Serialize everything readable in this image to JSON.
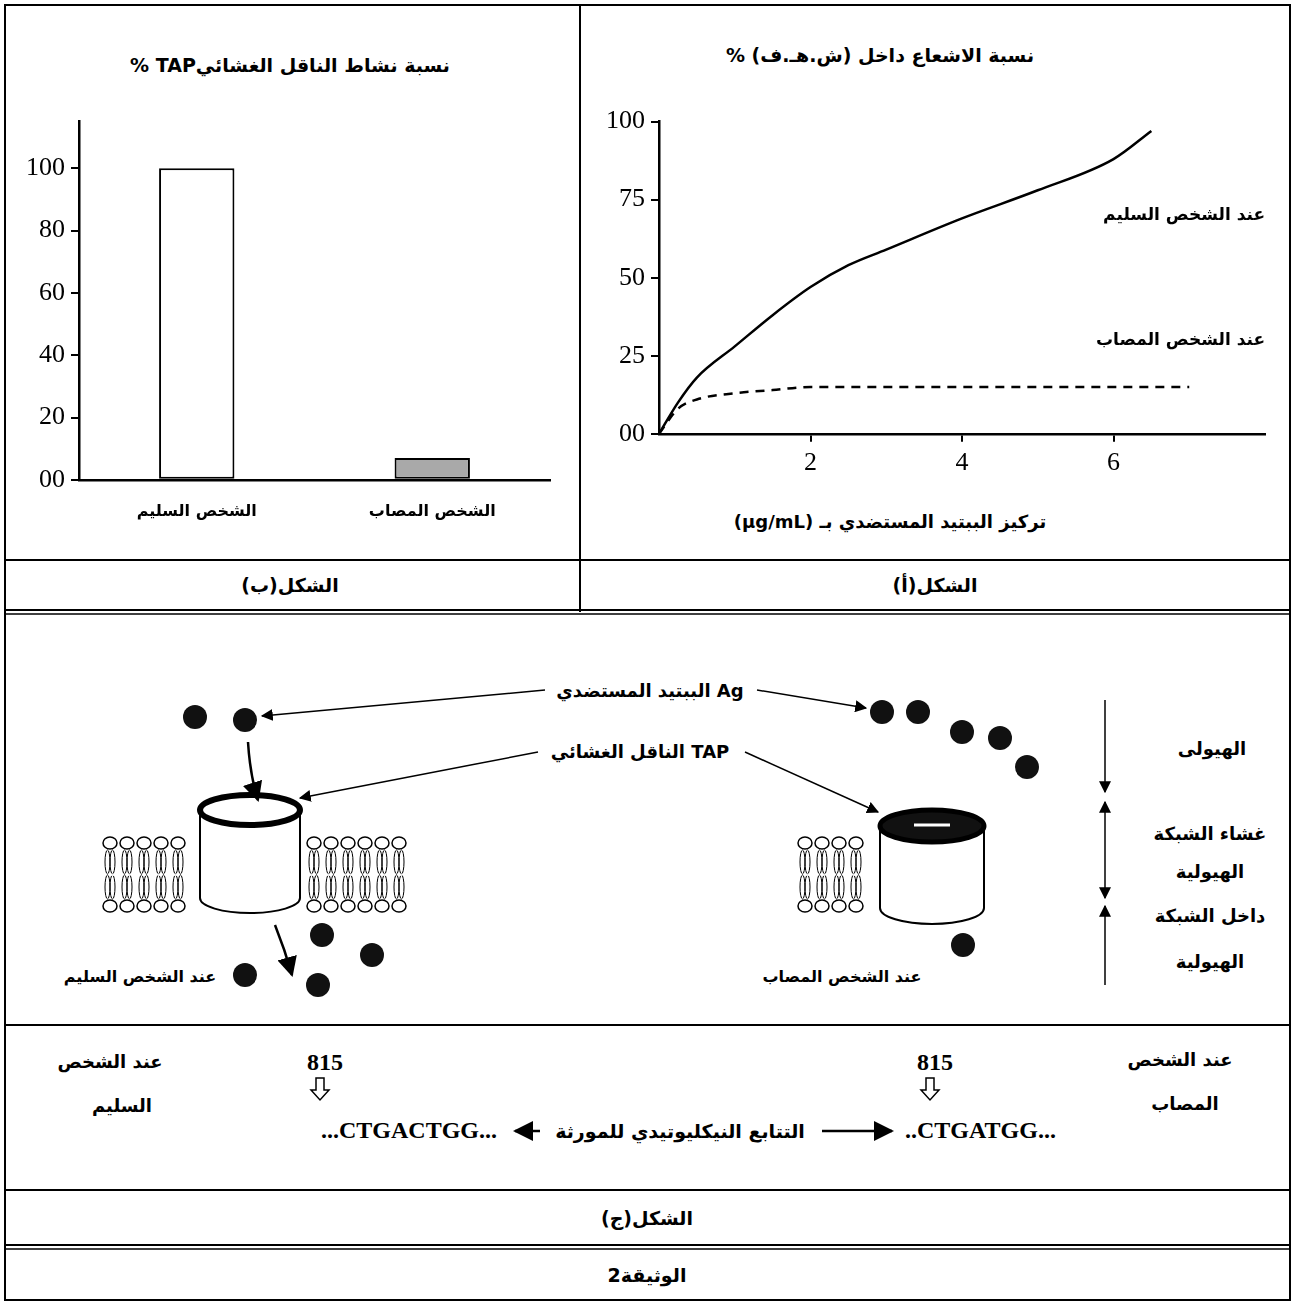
{
  "chart_data": [
    {
      "type": "bar",
      "caption": "الشكل(ب)",
      "title": "نسبة نشاط الناقل الغشائيTAP %",
      "categories": [
        "الشخص السليم",
        "الشخص المصاب"
      ],
      "values": [
        100,
        7
      ],
      "colors": [
        "#ffffff",
        "#a9a9a9"
      ],
      "ylim": [
        0,
        115
      ],
      "yticks": [
        {
          "value": 0,
          "label": "00"
        },
        20,
        40,
        60,
        80,
        100
      ],
      "grid": false
    },
    {
      "type": "line",
      "caption": "الشكل(أ)",
      "title": "نسبة الاشعاع داخل (ش.هـ.ف) %",
      "x_label": "تركيز الببتيد المستضدي بـ (µg/mL)",
      "xlim": [
        0,
        8
      ],
      "xticks": [
        2,
        4,
        6
      ],
      "ylim": [
        0,
        100
      ],
      "yticks": [
        {
          "value": 0,
          "label": "00"
        },
        25,
        50,
        75,
        100
      ],
      "grid": false,
      "series": [
        {
          "name": "عند الشخص السليم",
          "color": "#000000",
          "line_style": "solid",
          "x": [
            0,
            0.25,
            0.5,
            1,
            1.5,
            2,
            2.5,
            3,
            4,
            5,
            6,
            6.5
          ],
          "values": [
            0,
            10,
            18,
            28,
            38,
            47,
            54,
            59,
            69,
            78,
            88,
            97
          ]
        },
        {
          "name": "عند الشخص المصاب",
          "color": "#000000",
          "line_style": "dashed",
          "x": [
            0,
            0.25,
            0.5,
            1,
            1.5,
            2,
            3,
            4,
            5,
            6,
            7
          ],
          "values": [
            0,
            8,
            11,
            13,
            14,
            15,
            15,
            15,
            15,
            15,
            15
          ]
        }
      ]
    }
  ],
  "diagram": {
    "caption": "الشكل(ج)",
    "labels": {
      "peptide": "الببتيد المستضدي Ag",
      "transporter": "الناقل الغشائي TAP",
      "cytoplasm": "الهيولى",
      "membrane": "غشاء الشبكة الهيولية",
      "lumen": "داخل الشبكة الهيولية",
      "healthy": "عند الشخص السليم",
      "affected": "عند الشخص المصاب"
    },
    "sequence": {
      "title": "التتابع النيكليوتيدي للمورثة",
      "healthy": {
        "label": "عند الشخص السليم",
        "position": 815,
        "sequence": "...CTGACTGG..."
      },
      "affected": {
        "label": "عند الشخص المصاب",
        "position": 815,
        "sequence": "..CTGATGG..."
      }
    }
  },
  "document_title": "الوثيقة2"
}
